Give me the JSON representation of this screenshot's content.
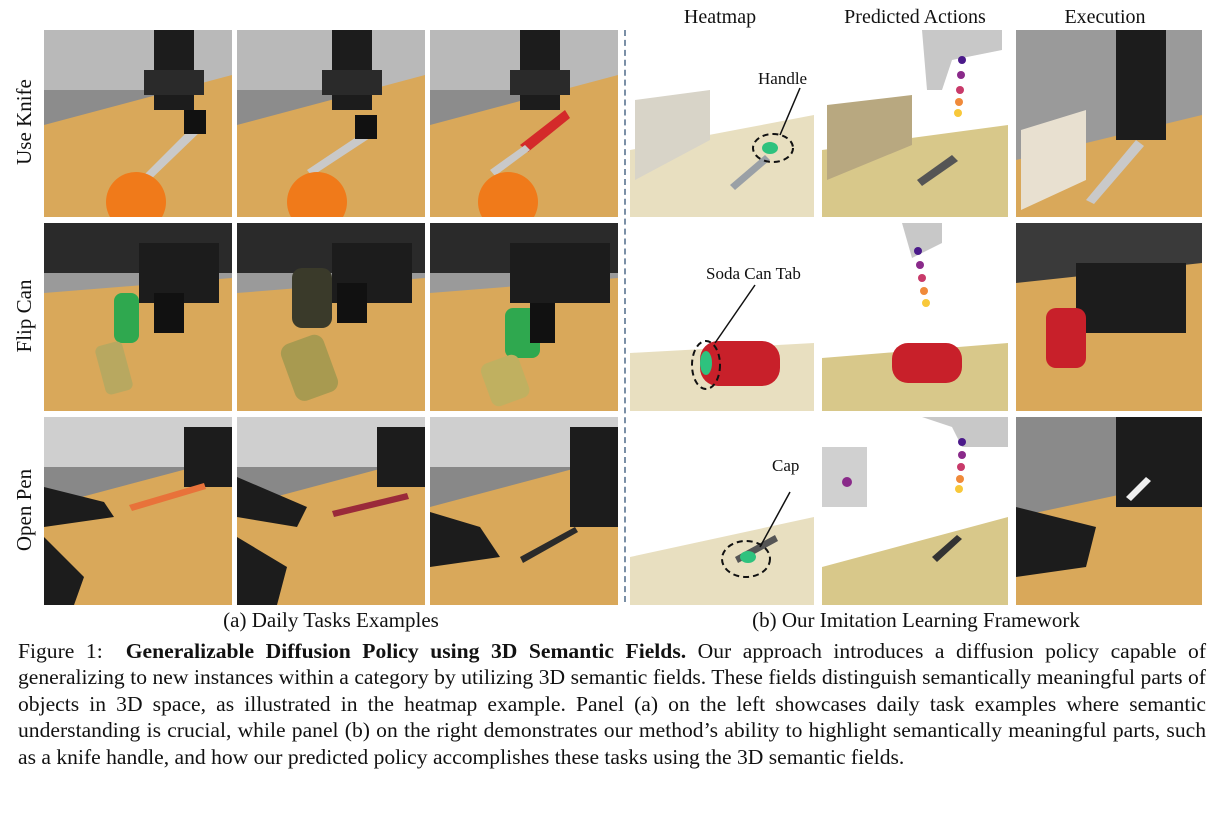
{
  "row_labels": [
    "Use Knife",
    "Flip Can",
    "Open Pen"
  ],
  "column_headers": [
    "Heatmap",
    "Predicted Actions",
    "Execution"
  ],
  "annotations": {
    "handle": "Handle",
    "soda_can_tab": "Soda Can Tab",
    "cap": "Cap"
  },
  "subcaptions": {
    "a": "(a) Daily Tasks Examples",
    "b": "(b) Our Imitation Learning Framework"
  },
  "caption": {
    "figure_label": "Figure 1:",
    "title": "Generalizable Diffusion Policy using 3D Semantic Fields.",
    "body": "Our approach introduces a diffusion policy capable of generalizing to new instances within a category by utilizing 3D semantic fields. These fields distinguish semantically meaningful parts of objects in 3D space, as illustrated in the heatmap example. Panel (a) on the left showcases daily task examples where semantic understanding is crucial, while panel (b) on the right demonstrates our method’s ability to highlight semantically meaningful parts, such as a knife handle, and how our predicted policy accomplishes these tasks using the 3D semantic fields."
  },
  "colors": {
    "table_wood": "#d9a85a",
    "robot_black": "#1c1c1c",
    "orange": "#f07a1a",
    "can_green": "#2fa84f",
    "can_red": "#c8202a",
    "heat_green": "#2ec27e",
    "divider": "#7a8fa6"
  }
}
